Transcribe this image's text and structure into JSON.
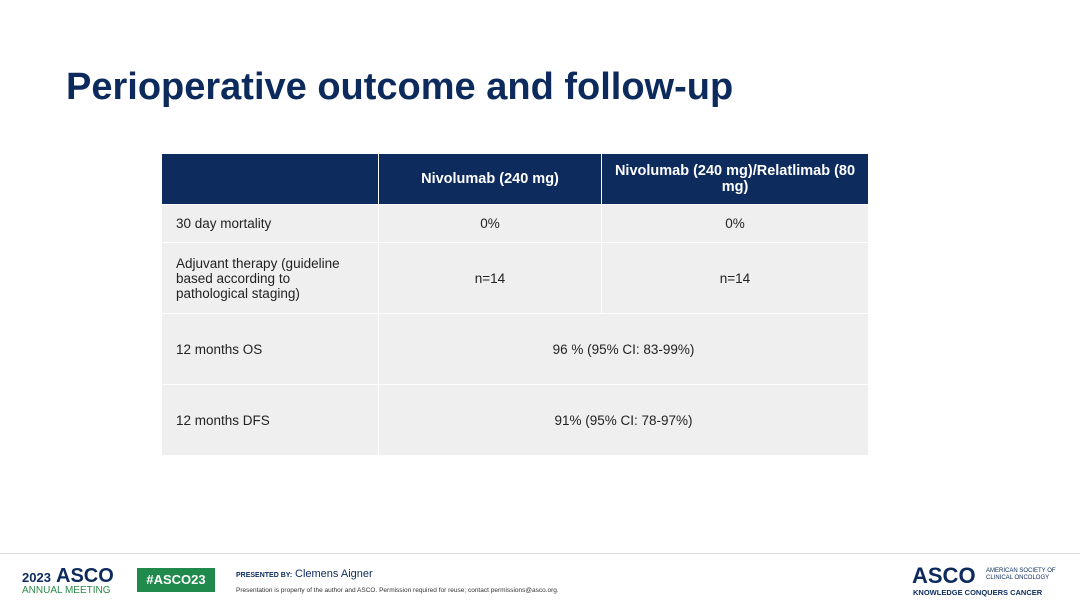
{
  "title": "Perioperative outcome and follow-up",
  "table": {
    "header": [
      "Nivolumab (240 mg)",
      "Nivolumab (240 mg)/Relatlimab (80 mg)"
    ],
    "rows": [
      [
        "30 day mortality",
        "0%",
        "0%"
      ],
      [
        "Adjuvant therapy (guideline based according to pathological staging)",
        "n=14",
        "n=14"
      ],
      [
        "12 months OS",
        "96 % (95% CI: 83-99%)"
      ],
      [
        "12 months DFS",
        "91% (95% CI: 78-97%)"
      ]
    ]
  },
  "footer": {
    "year": "2023",
    "meeting_brand": "ASCO",
    "meeting": "ANNUAL MEETING",
    "hashtag": "#ASCO23",
    "presented_by": "PRESENTED BY:",
    "presenter": "Clemens Aigner",
    "notice": "Presentation is property of the author and ASCO. Permission required for reuse; contact permissions@asco.org.",
    "brand": "ASCO",
    "society": "AMERICAN SOCIETY OF CLINICAL ONCOLOGY",
    "tagline": "KNOWLEDGE CONQUERS CANCER"
  }
}
